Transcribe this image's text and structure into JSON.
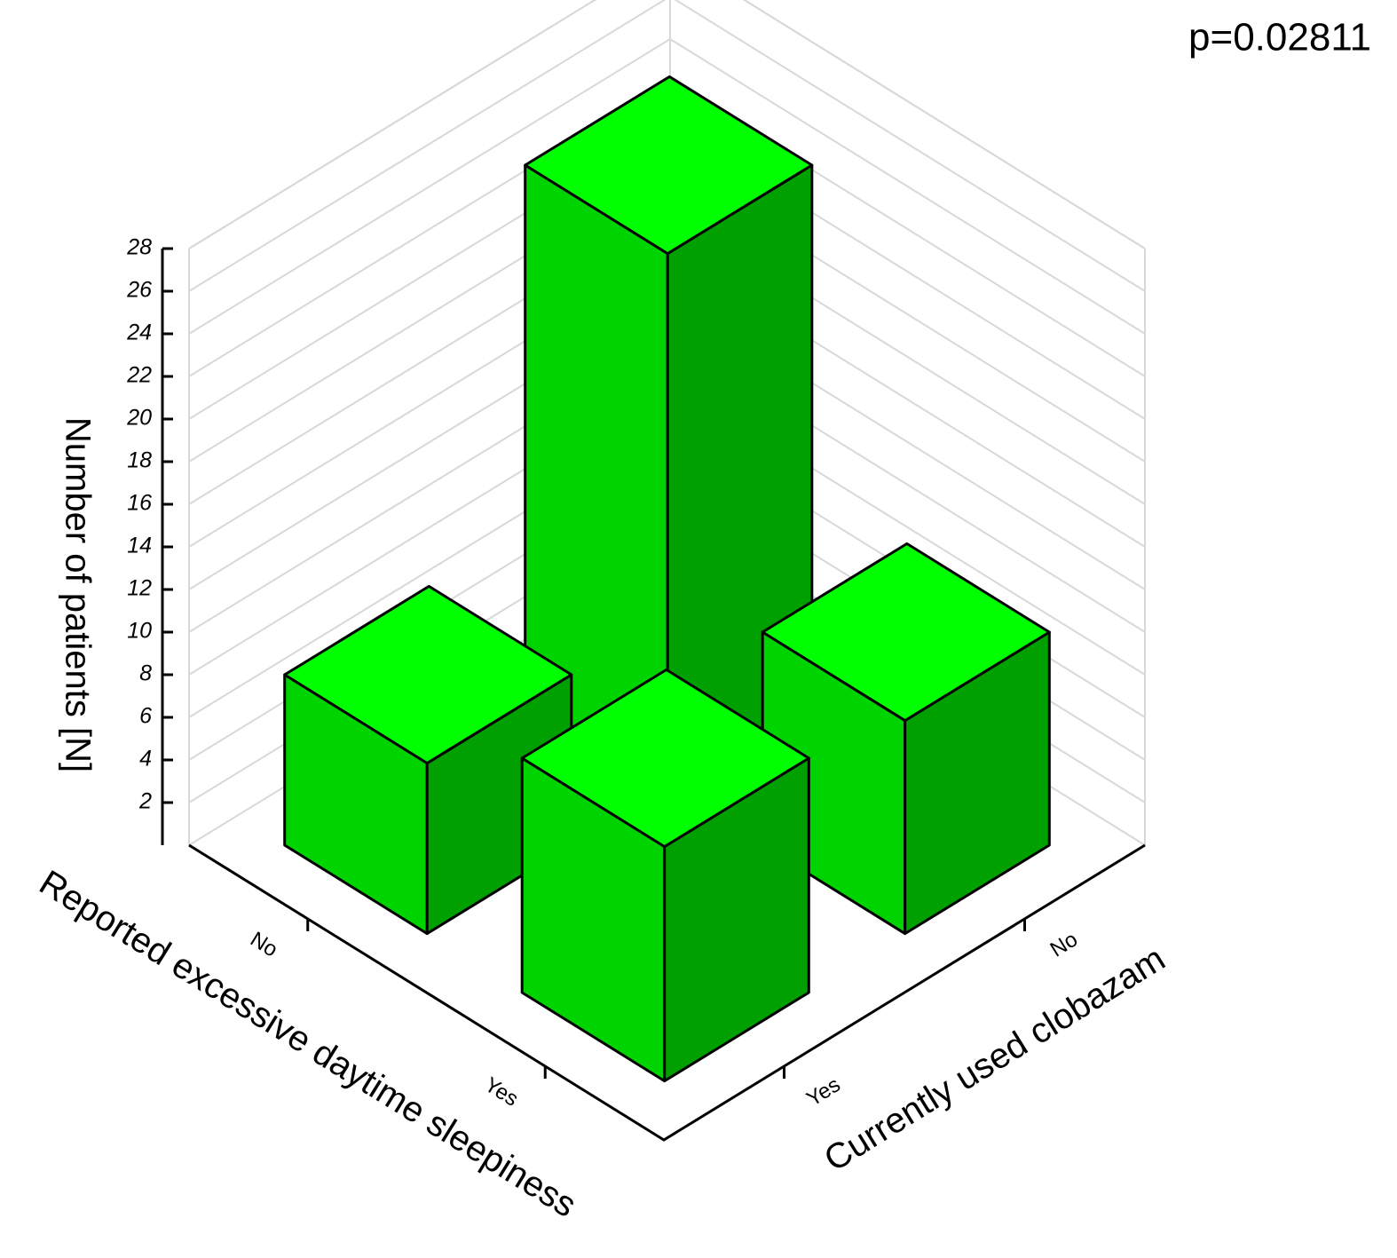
{
  "chart_data": {
    "type": "bar3d",
    "annotation": "p=0.02811",
    "x_label": "Reported excessive daytime sleepiness",
    "y_label": "Currently used clobazam",
    "z_label": "Number of patients [N]",
    "x_categories": [
      "No",
      "Yes"
    ],
    "y_categories": [
      "No",
      "Yes"
    ],
    "values": [
      [
        25,
        8
      ],
      [
        10,
        11
      ]
    ],
    "zlim": [
      0,
      28
    ],
    "zticks": [
      2,
      4,
      6,
      8,
      10,
      12,
      14,
      16,
      18,
      20,
      22,
      24,
      26,
      28
    ],
    "colors": {
      "top": "#00ff00",
      "left": "#00d400",
      "right": "#00a000"
    },
    "grid": true
  }
}
